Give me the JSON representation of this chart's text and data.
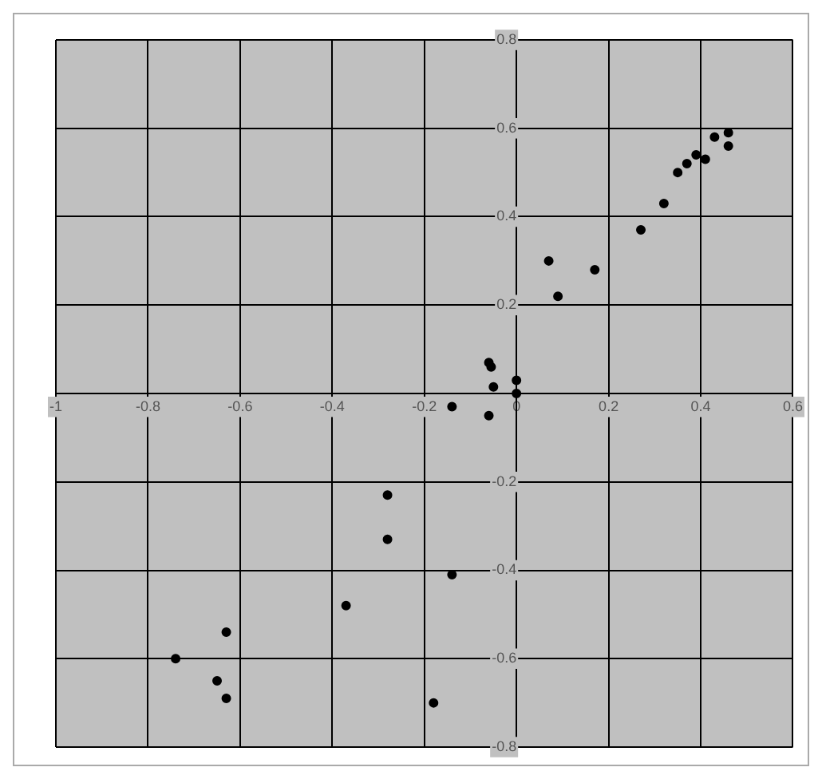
{
  "chart_data": {
    "type": "scatter",
    "xlim": [
      -1,
      0.6
    ],
    "ylim": [
      -0.8,
      0.8
    ],
    "xticks": [
      -1,
      -0.8,
      -0.6,
      -0.4,
      -0.2,
      0,
      0.2,
      0.4,
      0.6
    ],
    "yticks": [
      -0.8,
      -0.6,
      -0.4,
      -0.2,
      0.2,
      0.4,
      0.6,
      0.8
    ],
    "grid": true,
    "legend": false,
    "marker": "circle",
    "series": [
      {
        "color": "#000000",
        "x": [
          0.46,
          0.43,
          0.46,
          0.39,
          0.37,
          0.41,
          0.35,
          0.32,
          0.27,
          0.07,
          0.17,
          0.09,
          -0.06,
          -0.055,
          -0.05,
          0,
          0,
          -0.14,
          -0.06,
          -0.28,
          -0.28,
          -0.14,
          -0.37,
          -0.63,
          -0.74,
          -0.65,
          -0.63,
          -0.18
        ],
        "values": [
          0.59,
          0.58,
          0.56,
          0.54,
          0.52,
          0.53,
          0.5,
          0.43,
          0.37,
          0.3,
          0.28,
          0.22,
          0.07,
          0.06,
          0.015,
          0.03,
          0,
          -0.03,
          -0.05,
          -0.23,
          -0.33,
          -0.41,
          -0.48,
          -0.54,
          -0.6,
          -0.65,
          -0.69,
          -0.7
        ]
      }
    ]
  }
}
